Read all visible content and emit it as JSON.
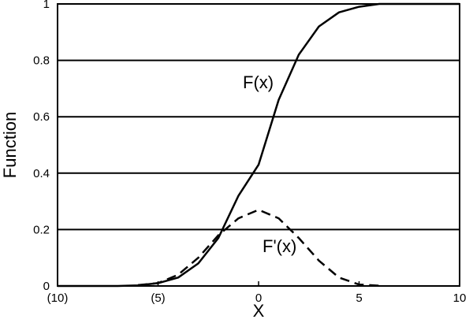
{
  "chart_data": {
    "type": "line",
    "x_label": "X",
    "y_label": "Function",
    "x": [
      -10,
      -9,
      -8,
      -7,
      -6,
      -5,
      -4,
      -3,
      -2,
      -1,
      0,
      1,
      2,
      3,
      4,
      5,
      6,
      7,
      8,
      9,
      10
    ],
    "series": [
      {
        "name": "F(x)",
        "color": "#000000",
        "dash": false,
        "values": [
          0,
          0,
          0,
          0,
          0.002,
          0.01,
          0.03,
          0.08,
          0.17,
          0.32,
          0.43,
          0.66,
          0.82,
          0.92,
          0.97,
          0.99,
          1,
          1,
          1,
          1,
          1
        ]
      },
      {
        "name": "F'(x)",
        "color": "#000000",
        "dash": true,
        "values": [
          null,
          null,
          null,
          null,
          0.003,
          0.01,
          0.04,
          0.1,
          0.18,
          0.24,
          0.27,
          0.24,
          0.17,
          0.09,
          0.03,
          0.005,
          0.001,
          null,
          null,
          null,
          null
        ]
      }
    ],
    "xlim": [
      -10,
      10
    ],
    "xticks": [
      {
        "value": -10,
        "label": "(10)"
      },
      {
        "value": -5,
        "label": "(5)"
      },
      0,
      5,
      10
    ],
    "ylim": [
      0,
      1
    ],
    "yticks": [
      0,
      0.2,
      0.4,
      0.6,
      0.8,
      1
    ],
    "grid": true
  }
}
